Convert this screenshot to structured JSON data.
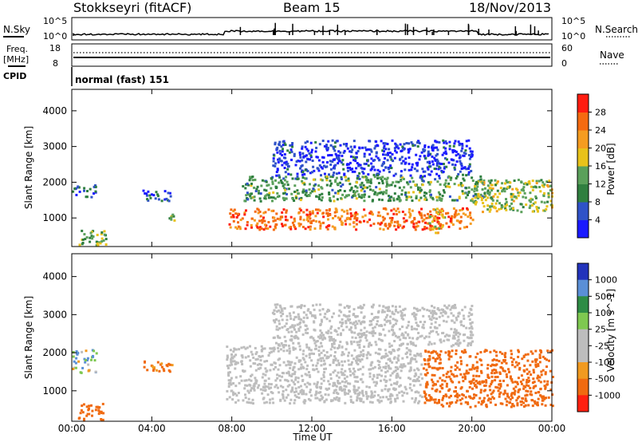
{
  "header": {
    "station": "Stokkseyri (fitACF)",
    "beam": "Beam 15",
    "date": "18/Nov/2013"
  },
  "summary": {
    "nsky_label": "N.Sky",
    "nsearch_label": "N.Search",
    "n_ticks": [
      "10^5",
      "10^0"
    ],
    "freq_label": "Freq.",
    "freq_unit": "[MHz]",
    "freq_ticks": [
      "18",
      "8"
    ],
    "nave_label": "Nave",
    "nave_ticks": [
      "60",
      "0"
    ],
    "cpid_label": "CPID",
    "cpid_value": "normal (fast) 151"
  },
  "colors": {
    "power": [
      "#1a1aff",
      "#2f52c8",
      "#2f7f3f",
      "#5aa05a",
      "#e8c21a",
      "#f59c20",
      "#f56a10",
      "#ff1c10"
    ],
    "velocity": [
      "#2233bb",
      "#5a8fd6",
      "#2e8c45",
      "#7ec850",
      "#bdbdbd",
      "#bdbdbd",
      "#f09a20",
      "#f06a10",
      "#ff2010"
    ]
  },
  "chart_data": [
    {
      "type": "heatmap",
      "panel": "power",
      "ylabel": "Slant Range [km]",
      "xlabel": "",
      "y_ticks": [
        "1000",
        "2000",
        "3000",
        "4000"
      ],
      "ylim": [
        200,
        4600
      ],
      "colorbar_label": "Power [dB]",
      "colorbar_ticks": [
        "4",
        "8",
        "12",
        "16",
        "20",
        "24",
        "28"
      ],
      "clim": [
        0,
        32
      ],
      "blobs": [
        {
          "t": [
            0.3,
            1.7
          ],
          "r": [
            250,
            700
          ],
          "v": 14
        },
        {
          "t": [
            0.0,
            1.2
          ],
          "r": [
            1600,
            1950
          ],
          "v": 6
        },
        {
          "t": [
            3.5,
            5.0
          ],
          "r": [
            1500,
            1800
          ],
          "v": 6
        },
        {
          "t": [
            4.7,
            5.2
          ],
          "r": [
            900,
            1200
          ],
          "v": 14
        },
        {
          "t": [
            7.7,
            20.0
          ],
          "r": [
            700,
            1300
          ],
          "v": 26
        },
        {
          "t": [
            8.5,
            21.0
          ],
          "r": [
            1500,
            2200
          ],
          "v": 12
        },
        {
          "t": [
            10.0,
            20.0
          ],
          "r": [
            2200,
            3200
          ],
          "v": 4
        },
        {
          "t": [
            20.0,
            24.0
          ],
          "r": [
            1200,
            2100
          ],
          "v": 16
        },
        {
          "t": [
            17.8,
            18.6
          ],
          "r": [
            600,
            1300
          ],
          "v": 18
        }
      ]
    },
    {
      "type": "heatmap",
      "panel": "velocity",
      "ylabel": "Slant Range [km]",
      "xlabel": "Time UT",
      "x_ticks": [
        "00:00",
        "04:00",
        "08:00",
        "12:00",
        "16:00",
        "20:00",
        "00:00"
      ],
      "y_ticks": [
        "1000",
        "2000",
        "3000",
        "4000"
      ],
      "ylim": [
        200,
        4600
      ],
      "colorbar_label": "Velocity [m s^-1]",
      "colorbar_ticks": [
        "1000",
        "500",
        "100",
        "25",
        "-25",
        "-100",
        "-500",
        "-1000"
      ],
      "blobs": [
        {
          "t": [
            0.3,
            1.7
          ],
          "r": [
            250,
            700
          ],
          "v": -300
        },
        {
          "t": [
            0.0,
            1.2
          ],
          "r": [
            1500,
            2100
          ],
          "v": 80
        },
        {
          "t": [
            3.5,
            5.0
          ],
          "r": [
            1500,
            1800
          ],
          "v": -150
        },
        {
          "t": [
            7.7,
            17.5
          ],
          "r": [
            700,
            2200
          ],
          "v": 0
        },
        {
          "t": [
            10.0,
            20.0
          ],
          "r": [
            2200,
            3300
          ],
          "v": 0
        },
        {
          "t": [
            17.5,
            24.0
          ],
          "r": [
            600,
            2100
          ],
          "v": -300
        }
      ]
    }
  ]
}
